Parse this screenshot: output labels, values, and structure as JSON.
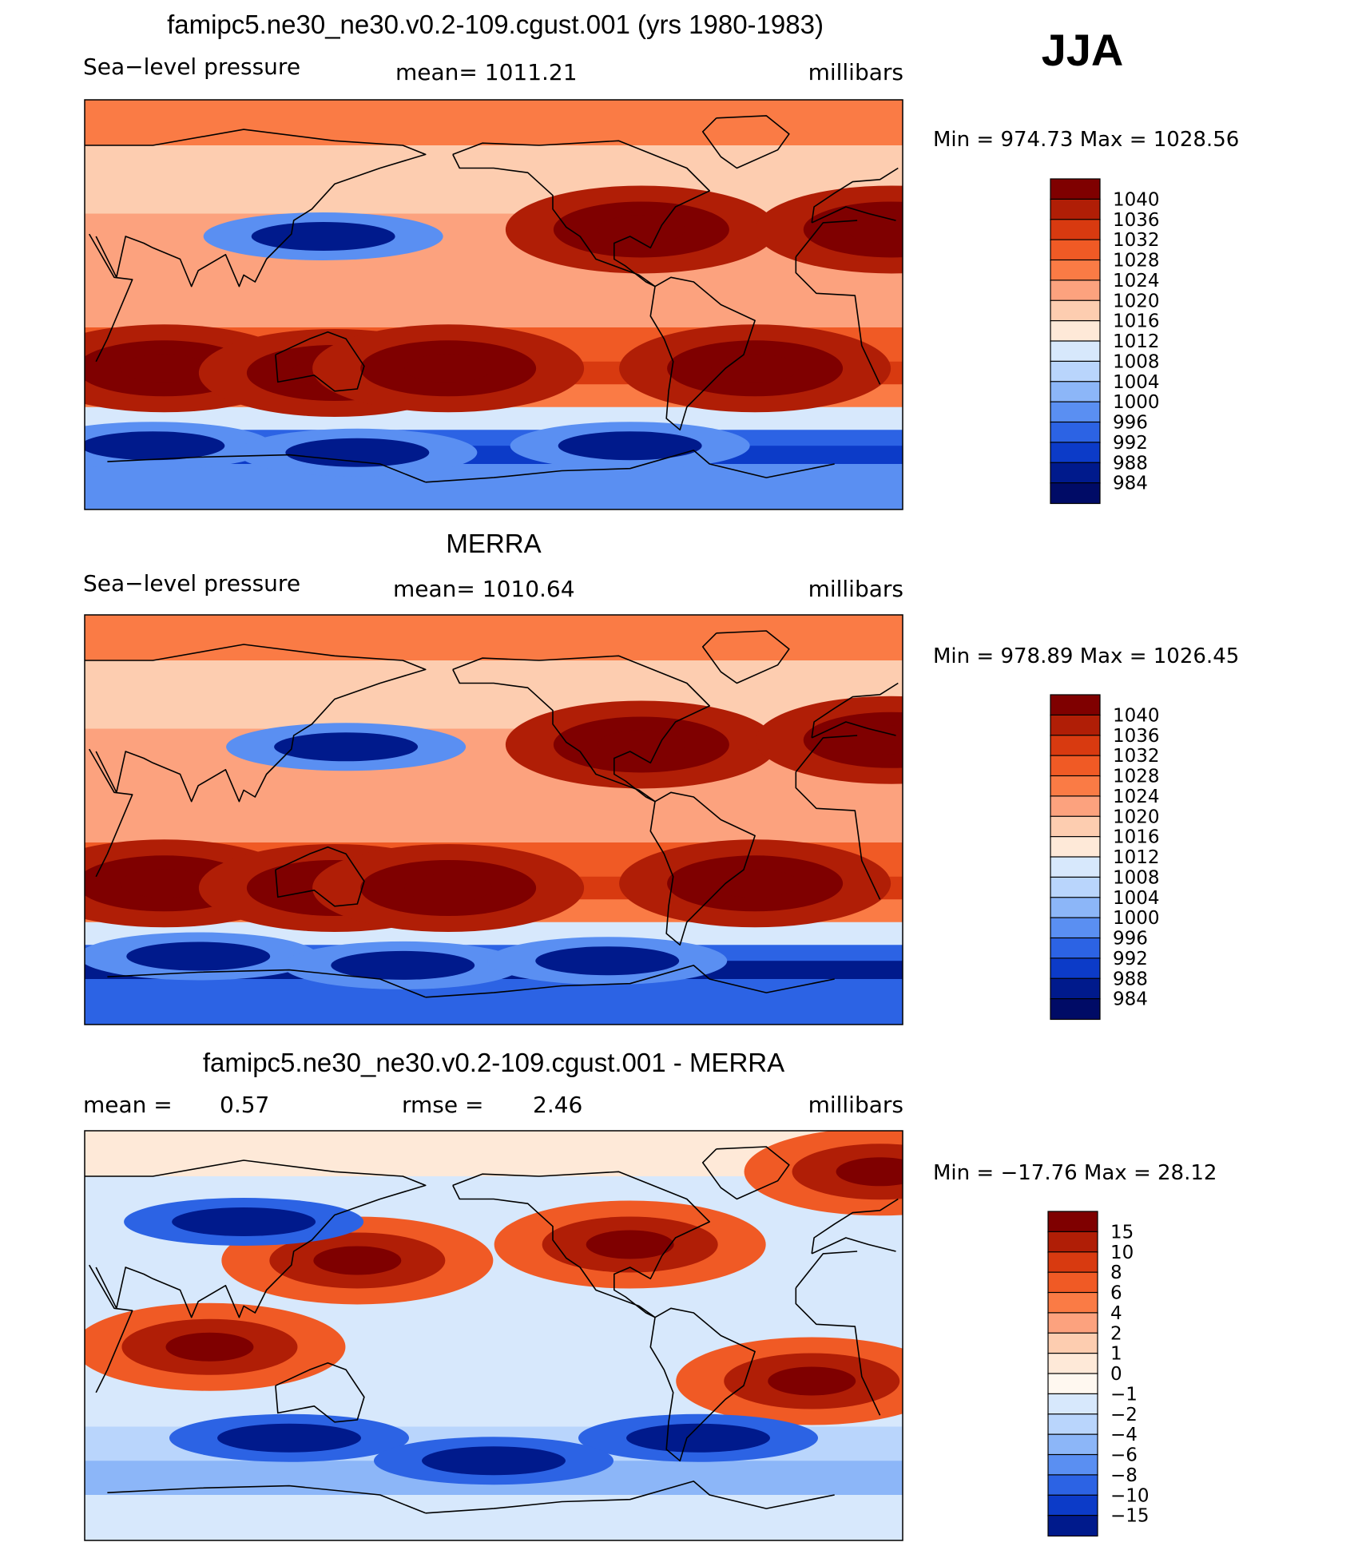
{
  "season": "JJA",
  "chart_data": [
    {
      "type": "heatmap",
      "title": "famipc5.ne30_ne30.v0.2-109.cgust.001 (yrs 1980-1983)",
      "left_label": "Sea−level pressure",
      "center_label": "mean=  1011.21",
      "units": "millibars",
      "min_max": "Min  =  974.73  Max  =  1028.56",
      "min": 974.73,
      "max": 1028.56,
      "mean": 1011.21,
      "colorbar": {
        "labels": [
          "1040",
          "1036",
          "1032",
          "1028",
          "1024",
          "1020",
          "1016",
          "1012",
          "1008",
          "1004",
          "1000",
          "996",
          "992",
          "988",
          "984"
        ],
        "colors": [
          "#7f0000",
          "#b01e06",
          "#d83a10",
          "#f05a25",
          "#fa7b45",
          "#fca27e",
          "#fdcdb0",
          "#fee9d8",
          "#d7e8fc",
          "#b9d5fc",
          "#8cb6f8",
          "#5a8ff2",
          "#2c63e4",
          "#0c3bc8",
          "#001a8c",
          "#000b66"
        ]
      },
      "highs": [
        [
          -145,
          33
        ],
        [
          -35,
          33
        ],
        [
          5,
          -28
        ],
        [
          80,
          -30
        ],
        [
          -95,
          -28
        ],
        [
          130,
          -28
        ]
      ],
      "lows": [
        [
          75,
          30
        ],
        [
          0,
          -62
        ],
        [
          90,
          -65
        ],
        [
          -150,
          -62
        ]
      ],
      "background_value": 1013
    },
    {
      "type": "heatmap",
      "title": "MERRA",
      "left_label": "Sea−level pressure",
      "center_label": "mean=  1010.64",
      "units": "millibars",
      "min_max": "Min  =  978.89  Max  =  1026.45",
      "min": 978.89,
      "max": 1026.45,
      "mean": 1010.64,
      "colorbar": {
        "labels": [
          "1040",
          "1036",
          "1032",
          "1028",
          "1024",
          "1020",
          "1016",
          "1012",
          "1008",
          "1004",
          "1000",
          "996",
          "992",
          "988",
          "984"
        ],
        "colors": [
          "#7f0000",
          "#b01e06",
          "#d83a10",
          "#f05a25",
          "#fa7b45",
          "#fca27e",
          "#fdcdb0",
          "#fee9d8",
          "#d7e8fc",
          "#b9d5fc",
          "#8cb6f8",
          "#5a8ff2",
          "#2c63e4",
          "#0c3bc8",
          "#001a8c",
          "#000b66"
        ]
      },
      "highs": [
        [
          -145,
          33
        ],
        [
          -35,
          35
        ],
        [
          5,
          -28
        ],
        [
          80,
          -30
        ],
        [
          -95,
          -28
        ],
        [
          130,
          -30
        ]
      ],
      "lows": [
        [
          85,
          32
        ],
        [
          20,
          -60
        ],
        [
          110,
          -64
        ],
        [
          -160,
          -62
        ]
      ],
      "background_value": 1013
    },
    {
      "type": "heatmap",
      "title": "famipc5.ne30_ne30.v0.2-109.cgust.001 - MERRA",
      "left_label": "mean  =",
      "left_value": "0.57",
      "center_label": "rmse  =",
      "center_value": "2.46",
      "units": "millibars",
      "min_max": "Min  =  −17.76  Max  =    28.12",
      "min": -17.76,
      "max": 28.12,
      "mean": 0.57,
      "rmse": 2.46,
      "colorbar": {
        "labels": [
          "15",
          "10",
          "8",
          "6",
          "4",
          "2",
          "1",
          "0",
          "−1",
          "−2",
          "−4",
          "−6",
          "−8",
          "−10",
          "−15"
        ],
        "colors": [
          "#7f0000",
          "#b01e06",
          "#d83a10",
          "#f05a25",
          "#fa7b45",
          "#fca27e",
          "#fdcdb0",
          "#fee9d8",
          "#fff8f0",
          "#d7e8fc",
          "#b9d5fc",
          "#8cb6f8",
          "#5a8ff2",
          "#2c63e4",
          "#0c3bc8",
          "#001a8c"
        ]
      },
      "highs": [
        [
          90,
          33
        ],
        [
          -70,
          -20
        ],
        [
          -40,
          72
        ],
        [
          -150,
          40
        ],
        [
          25,
          -5
        ]
      ],
      "lows": [
        [
          -120,
          -45
        ],
        [
          60,
          -45
        ],
        [
          150,
          -55
        ],
        [
          40,
          50
        ]
      ],
      "background_value": 0.8
    }
  ]
}
